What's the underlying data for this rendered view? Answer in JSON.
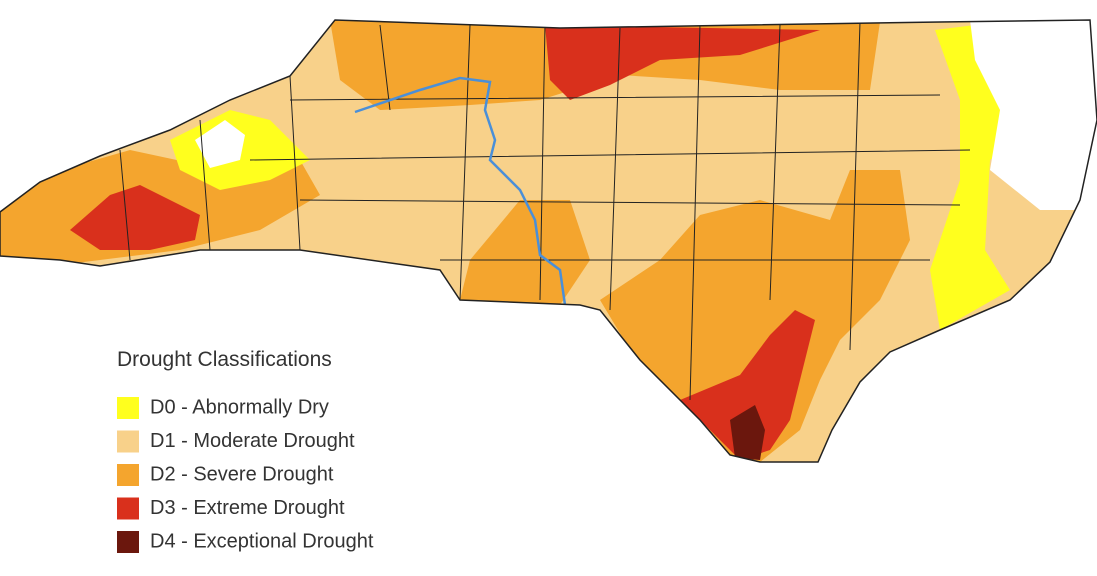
{
  "legend": {
    "title": "Drought Classifications",
    "items": [
      {
        "label": "D0 - Abnormally Dry",
        "color": "#ffff1e"
      },
      {
        "label": "D1 - Moderate Drought",
        "color": "#f8d18a"
      },
      {
        "label": "D2 - Severe Drought",
        "color": "#f4a52e"
      },
      {
        "label": "D3 - Extreme Drought",
        "color": "#d9301c"
      },
      {
        "label": "D4 - Exceptional Drought",
        "color": "#6b170d"
      }
    ]
  }
}
